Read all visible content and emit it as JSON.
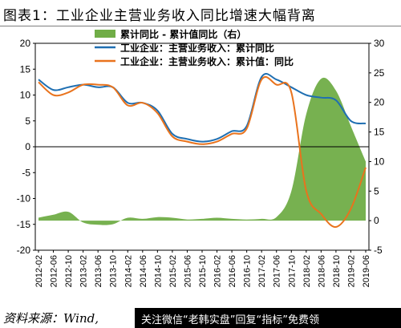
{
  "title": "图表1：工业企业主营业务收入同比增速大幅背离",
  "source": "资料来源：Wind,",
  "watermark": "关注微信“老韩实盘”回复“指标”免费领",
  "colors": {
    "blue": "#1f6fb2",
    "orange": "#e9731d",
    "green": "#70ad47"
  },
  "chart_data": {
    "type": "line",
    "x": [
      "2012-02",
      "2012-06",
      "2012-10",
      "2013-02",
      "2013-06",
      "2013-10",
      "2014-02",
      "2014-06",
      "2014-10",
      "2015-02",
      "2015-06",
      "2015-10",
      "2016-02",
      "2016-06",
      "2016-10",
      "2017-02",
      "2017-06",
      "2017-10",
      "2018-02",
      "2018-06",
      "2018-10",
      "2019-02",
      "2019-06"
    ],
    "x_tick_labels": [
      "2012-02",
      "2012-06",
      "2012-10",
      "2013-02",
      "2013-06",
      "2013-10",
      "2014-02",
      "2014-06",
      "2014-10",
      "2015-02",
      "2015-06",
      "2015-10",
      "2016-02",
      "2016-06",
      "2016-10",
      "2017-02",
      "2017-06",
      "2017-10",
      "2018-02",
      "2018-06",
      "2018-10",
      "2019-02",
      "2019-06"
    ],
    "y_left": {
      "lim": [
        -20,
        20
      ],
      "ticks": [
        20,
        15,
        10,
        5,
        0,
        -5,
        -10,
        -15,
        -20
      ]
    },
    "y_right": {
      "lim": [
        -5,
        30
      ],
      "ticks": [
        30,
        25,
        20,
        15,
        10,
        5,
        0,
        -5
      ]
    },
    "grid": false,
    "legend": "top",
    "series": [
      {
        "name": "累计同比 - 累计值同比（右）",
        "kind": "area",
        "axis": "right",
        "color": "#70ad47",
        "values": [
          0.5,
          1.0,
          1.5,
          -0.3,
          -0.7,
          -0.6,
          0.5,
          0.3,
          0.6,
          0.5,
          0.2,
          0.3,
          0.5,
          0.3,
          0.2,
          0.3,
          0.6,
          5.0,
          18.0,
          24.0,
          22.0,
          16.0,
          10.0
        ]
      },
      {
        "name": "工业企业：主营业务收入：累计同比",
        "kind": "line",
        "axis": "left",
        "color": "#1f6fb2",
        "values": [
          13.0,
          11.0,
          11.5,
          12.0,
          11.5,
          11.5,
          8.5,
          8.5,
          7.0,
          2.5,
          1.5,
          1.0,
          1.5,
          3.0,
          4.0,
          13.5,
          13.0,
          11.5,
          10.0,
          9.5,
          9.0,
          5.0,
          4.5
        ]
      },
      {
        "name": "工业企业：主营业务收入：累计值：同比",
        "kind": "line",
        "axis": "left",
        "color": "#e9731d",
        "values": [
          12.5,
          10.0,
          10.5,
          12.0,
          12.0,
          11.5,
          8.0,
          8.5,
          6.5,
          2.0,
          1.0,
          0.5,
          1.0,
          2.5,
          3.5,
          13.0,
          12.0,
          10.5,
          -8.5,
          -13.0,
          -15.5,
          -12.0,
          -4.0
        ]
      }
    ]
  }
}
